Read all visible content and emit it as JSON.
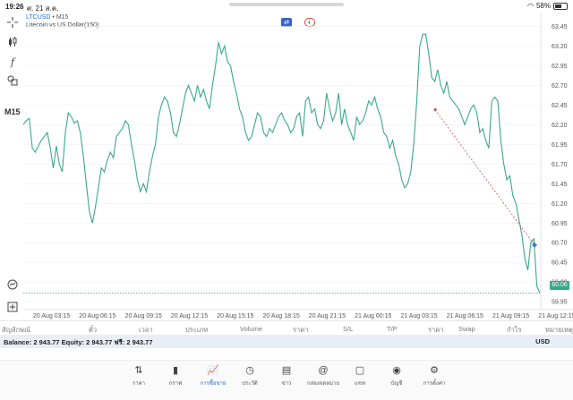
{
  "status_bar": {
    "time": "19:26",
    "date": "ศ. 21 ส.ค.",
    "battery": "58%",
    "battery_level": 0.58,
    "wifi_icon": "wifi-icon"
  },
  "toolbar": {
    "timeframe": "M15",
    "icons": [
      "crosshair-icon",
      "candles-icon",
      "function-icon",
      "shapes-icon"
    ]
  },
  "chart_header": {
    "symbol": "LTCUSD",
    "separator": " • ",
    "timeframe": "M15",
    "description": "Litecoin vs US Dollar(150)"
  },
  "chart_data": {
    "type": "line",
    "symbol": "LTCUSD",
    "ylim": [
      59.85,
      63.5
    ],
    "y_ticks": [
      "63.45",
      "63.20",
      "62.95",
      "62.70",
      "62.45",
      "62.20",
      "61.95",
      "61.70",
      "61.45",
      "61.20",
      "60.95",
      "60.70",
      "60.45",
      "60.20",
      "59.95"
    ],
    "x_ticks": [
      "20 Aug 03:15",
      "20 Aug 06:15",
      "20 Aug 09:15",
      "20 Aug 12:15",
      "20 Aug 15:15",
      "20 Aug 18:15",
      "20 Aug 21:15",
      "21 Aug 00:15",
      "21 Aug 03:15",
      "21 Aug 06:15",
      "21 Aug 09:15",
      "21 Aug 12:15"
    ],
    "current_price": "60.06",
    "current_price_value": 60.06,
    "close_prices": [
      62.2,
      62.25,
      62.28,
      61.9,
      61.85,
      61.93,
      62.0,
      62.05,
      62.1,
      61.9,
      61.65,
      61.93,
      61.7,
      61.6,
      62.1,
      62.35,
      62.3,
      62.22,
      62.25,
      62.1,
      61.8,
      61.45,
      61.1,
      60.95,
      61.15,
      61.4,
      61.65,
      61.6,
      61.75,
      61.85,
      61.78,
      62.05,
      62.1,
      62.15,
      62.25,
      62.2,
      61.95,
      61.75,
      61.5,
      61.35,
      61.45,
      61.35,
      61.6,
      61.8,
      61.95,
      62.3,
      62.45,
      62.55,
      62.5,
      62.35,
      62.1,
      62.05,
      62.2,
      62.4,
      62.6,
      62.7,
      62.6,
      62.5,
      62.7,
      62.55,
      62.65,
      62.5,
      62.4,
      62.7,
      62.95,
      63.25,
      63.1,
      63.2,
      63.0,
      62.95,
      62.75,
      62.6,
      62.4,
      62.3,
      62.1,
      62.0,
      62.05,
      62.2,
      62.35,
      62.3,
      62.1,
      62.05,
      62.15,
      62.1,
      62.2,
      62.3,
      62.35,
      62.25,
      62.2,
      62.1,
      62.15,
      62.3,
      62.35,
      62.05,
      62.5,
      62.55,
      62.35,
      62.4,
      62.2,
      62.15,
      62.25,
      62.6,
      62.4,
      62.25,
      62.35,
      62.6,
      62.2,
      62.4,
      62.2,
      62.1,
      62.0,
      62.3,
      62.2,
      62.25,
      62.35,
      62.5,
      62.45,
      62.55,
      62.4,
      62.3,
      62.1,
      62.05,
      61.9,
      62.0,
      61.8,
      61.7,
      61.5,
      61.4,
      61.45,
      61.6,
      61.95,
      62.5,
      63.2,
      63.35,
      63.35,
      63.1,
      62.8,
      62.75,
      62.9,
      62.7,
      62.6,
      62.75,
      62.55,
      62.5,
      62.45,
      62.4,
      62.3,
      62.2,
      62.3,
      62.4,
      62.45,
      62.35,
      62.1,
      62.15,
      62.0,
      61.9,
      62.5,
      62.55,
      62.5,
      62.0,
      61.7,
      61.5,
      61.55,
      61.3,
      61.2,
      61.0,
      60.8,
      60.5,
      60.35,
      60.7,
      60.75,
      60.15,
      60.06
    ],
    "trendline": {
      "from": {
        "x": "21 Aug 05:30",
        "y": 62.39
      },
      "to": {
        "x": "21 Aug 12:00",
        "y": 60.67
      }
    },
    "colors": {
      "line": "#3aa88d",
      "trend": "#c33a3a",
      "marker_start": "#e0443a",
      "marker_end": "#3b7fd9",
      "grid": "#eef1f4"
    }
  },
  "table_header": [
    "สัญลักษณ์",
    "ตั๋ว",
    "เวลา",
    "ประเภท",
    "Volume",
    "ราคา",
    "S/L",
    "T/P",
    "ราคา",
    "Swap",
    "กำไร",
    "หมายเหตุ"
  ],
  "account": {
    "summary": "Balance: 2 943.77 Equity: 2 943.77 ฟรี: 2 943.77",
    "currency": "USD"
  },
  "tabs": [
    {
      "label": "ราคา",
      "icon": "arrows-updown-icon",
      "glyph": "⇅"
    },
    {
      "label": "กราฟ",
      "icon": "candles-icon",
      "glyph": "▮"
    },
    {
      "label": "การซื้อขาย",
      "icon": "trade-chart-icon",
      "glyph": "📈"
    },
    {
      "label": "ประวัติ",
      "icon": "history-icon",
      "glyph": "◷"
    },
    {
      "label": "ข่าว",
      "icon": "news-icon",
      "glyph": "▤"
    },
    {
      "label": "กล่องจดหมาย",
      "icon": "mail-at-icon",
      "glyph": "@"
    },
    {
      "label": "แชท",
      "icon": "chat-icon",
      "glyph": "▢"
    },
    {
      "label": "บัญชี",
      "icon": "account-icon",
      "glyph": "◉"
    },
    {
      "label": "การตั้งค่า",
      "icon": "settings-gear-icon",
      "glyph": "⚙"
    }
  ],
  "active_tab": 2
}
